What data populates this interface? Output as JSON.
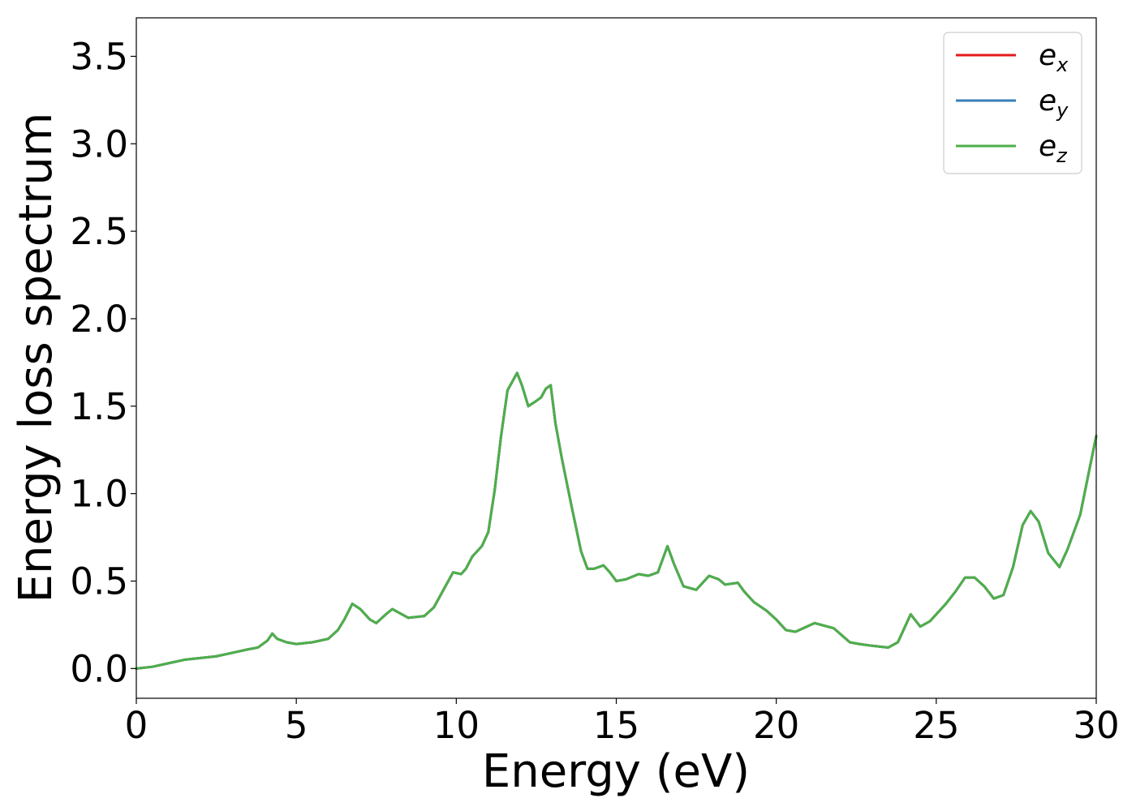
{
  "chart_data": {
    "type": "line",
    "title": "",
    "xlabel": "Energy (eV)",
    "ylabel": "Energy loss spectrum",
    "xlim": [
      0,
      30
    ],
    "ylim": [
      -0.17,
      3.72
    ],
    "x_ticks": [
      0,
      5,
      10,
      15,
      20,
      25,
      30
    ],
    "x_tick_labels": [
      "0",
      "5",
      "10",
      "15",
      "20",
      "25",
      "30"
    ],
    "y_ticks": [
      0.0,
      0.5,
      1.0,
      1.5,
      2.0,
      2.5,
      3.0,
      3.5
    ],
    "y_tick_labels": [
      "0.0",
      "0.5",
      "1.0",
      "1.5",
      "2.0",
      "2.5",
      "3.0",
      "3.5"
    ],
    "grid": false,
    "legend_position": "top-right",
    "x": [
      0,
      0.5,
      1.0,
      1.5,
      2.0,
      2.5,
      3.0,
      3.5,
      3.8,
      4.1,
      4.25,
      4.4,
      4.7,
      5.0,
      5.5,
      6.0,
      6.3,
      6.5,
      6.75,
      7.0,
      7.3,
      7.5,
      7.8,
      8.0,
      8.2,
      8.5,
      9.0,
      9.3,
      9.6,
      9.9,
      10.15,
      10.3,
      10.5,
      10.8,
      11.0,
      11.2,
      11.4,
      11.6,
      11.9,
      12.05,
      12.25,
      12.5,
      12.65,
      12.8,
      12.95,
      13.1,
      13.3,
      13.6,
      13.9,
      14.1,
      14.3,
      14.6,
      14.8,
      15.0,
      15.3,
      15.7,
      16.0,
      16.3,
      16.6,
      16.8,
      17.1,
      17.5,
      17.9,
      18.2,
      18.4,
      18.8,
      19.0,
      19.3,
      19.7,
      20.0,
      20.3,
      20.6,
      21.2,
      21.8,
      22.3,
      22.6,
      23.0,
      23.5,
      23.8,
      24.0,
      24.2,
      24.5,
      24.8,
      25.3,
      25.6,
      25.9,
      26.2,
      26.5,
      26.8,
      27.1,
      27.4,
      27.7,
      27.95,
      28.2,
      28.5,
      28.85,
      29.1,
      29.5,
      30.0
    ],
    "series": [
      {
        "name": "e_x",
        "color": "#e41a1c",
        "values": [
          0.0,
          0.01,
          0.03,
          0.05,
          0.06,
          0.07,
          0.09,
          0.11,
          0.12,
          0.16,
          0.2,
          0.17,
          0.15,
          0.14,
          0.15,
          0.17,
          0.22,
          0.28,
          0.37,
          0.34,
          0.28,
          0.26,
          0.31,
          0.34,
          0.32,
          0.29,
          0.3,
          0.35,
          0.45,
          0.55,
          0.54,
          0.57,
          0.64,
          0.7,
          0.78,
          1.02,
          1.33,
          1.59,
          1.69,
          1.62,
          1.5,
          1.53,
          1.55,
          1.6,
          1.62,
          1.4,
          1.2,
          0.93,
          0.67,
          0.57,
          0.57,
          0.59,
          0.55,
          0.5,
          0.51,
          0.54,
          0.53,
          0.55,
          0.7,
          0.6,
          0.47,
          0.45,
          0.53,
          0.51,
          0.48,
          0.49,
          0.44,
          0.38,
          0.33,
          0.28,
          0.22,
          0.21,
          0.26,
          0.23,
          0.15,
          0.14,
          0.13,
          0.12,
          0.15,
          0.23,
          0.31,
          0.24,
          0.27,
          0.37,
          0.44,
          0.52,
          0.52,
          0.47,
          0.4,
          0.42,
          0.58,
          0.82,
          0.9,
          0.84,
          0.66,
          0.58,
          0.68,
          0.88,
          1.33
        ]
      },
      {
        "name": "e_y",
        "color": "#377eb8",
        "values": [
          0.0,
          0.01,
          0.03,
          0.05,
          0.06,
          0.07,
          0.09,
          0.11,
          0.12,
          0.16,
          0.2,
          0.17,
          0.15,
          0.14,
          0.15,
          0.17,
          0.22,
          0.28,
          0.37,
          0.34,
          0.28,
          0.26,
          0.31,
          0.34,
          0.32,
          0.29,
          0.3,
          0.35,
          0.45,
          0.55,
          0.54,
          0.57,
          0.64,
          0.7,
          0.78,
          1.02,
          1.33,
          1.59,
          1.69,
          1.62,
          1.5,
          1.53,
          1.55,
          1.6,
          1.62,
          1.4,
          1.2,
          0.93,
          0.67,
          0.57,
          0.57,
          0.59,
          0.55,
          0.5,
          0.51,
          0.54,
          0.53,
          0.55,
          0.7,
          0.6,
          0.47,
          0.45,
          0.53,
          0.51,
          0.48,
          0.49,
          0.44,
          0.38,
          0.33,
          0.28,
          0.22,
          0.21,
          0.26,
          0.23,
          0.15,
          0.14,
          0.13,
          0.12,
          0.15,
          0.23,
          0.31,
          0.24,
          0.27,
          0.37,
          0.44,
          0.52,
          0.52,
          0.47,
          0.4,
          0.42,
          0.58,
          0.82,
          0.9,
          0.84,
          0.66,
          0.58,
          0.68,
          0.88,
          1.33
        ]
      },
      {
        "name": "e_z",
        "color": "#4daf4a",
        "values": [
          0.0,
          0.01,
          0.03,
          0.05,
          0.06,
          0.07,
          0.09,
          0.11,
          0.12,
          0.16,
          0.2,
          0.17,
          0.15,
          0.14,
          0.15,
          0.17,
          0.22,
          0.28,
          0.37,
          0.34,
          0.28,
          0.26,
          0.31,
          0.34,
          0.32,
          0.29,
          0.3,
          0.35,
          0.45,
          0.55,
          0.54,
          0.57,
          0.64,
          0.7,
          0.78,
          1.02,
          1.33,
          1.59,
          1.69,
          1.62,
          1.5,
          1.53,
          1.55,
          1.6,
          1.62,
          1.4,
          1.2,
          0.93,
          0.67,
          0.57,
          0.57,
          0.59,
          0.55,
          0.5,
          0.51,
          0.54,
          0.53,
          0.55,
          0.7,
          0.6,
          0.47,
          0.45,
          0.53,
          0.51,
          0.48,
          0.49,
          0.44,
          0.38,
          0.33,
          0.28,
          0.22,
          0.21,
          0.26,
          0.23,
          0.15,
          0.14,
          0.13,
          0.12,
          0.15,
          0.23,
          0.31,
          0.24,
          0.27,
          0.37,
          0.44,
          0.52,
          0.52,
          0.47,
          0.4,
          0.42,
          0.58,
          0.82,
          0.9,
          0.84,
          0.66,
          0.58,
          0.68,
          0.88,
          1.33
        ]
      }
    ],
    "legend": [
      {
        "base": "e",
        "sub": "x",
        "color": "#e41a1c"
      },
      {
        "base": "e",
        "sub": "y",
        "color": "#377eb8"
      },
      {
        "base": "e",
        "sub": "z",
        "color": "#4daf4a"
      }
    ]
  }
}
